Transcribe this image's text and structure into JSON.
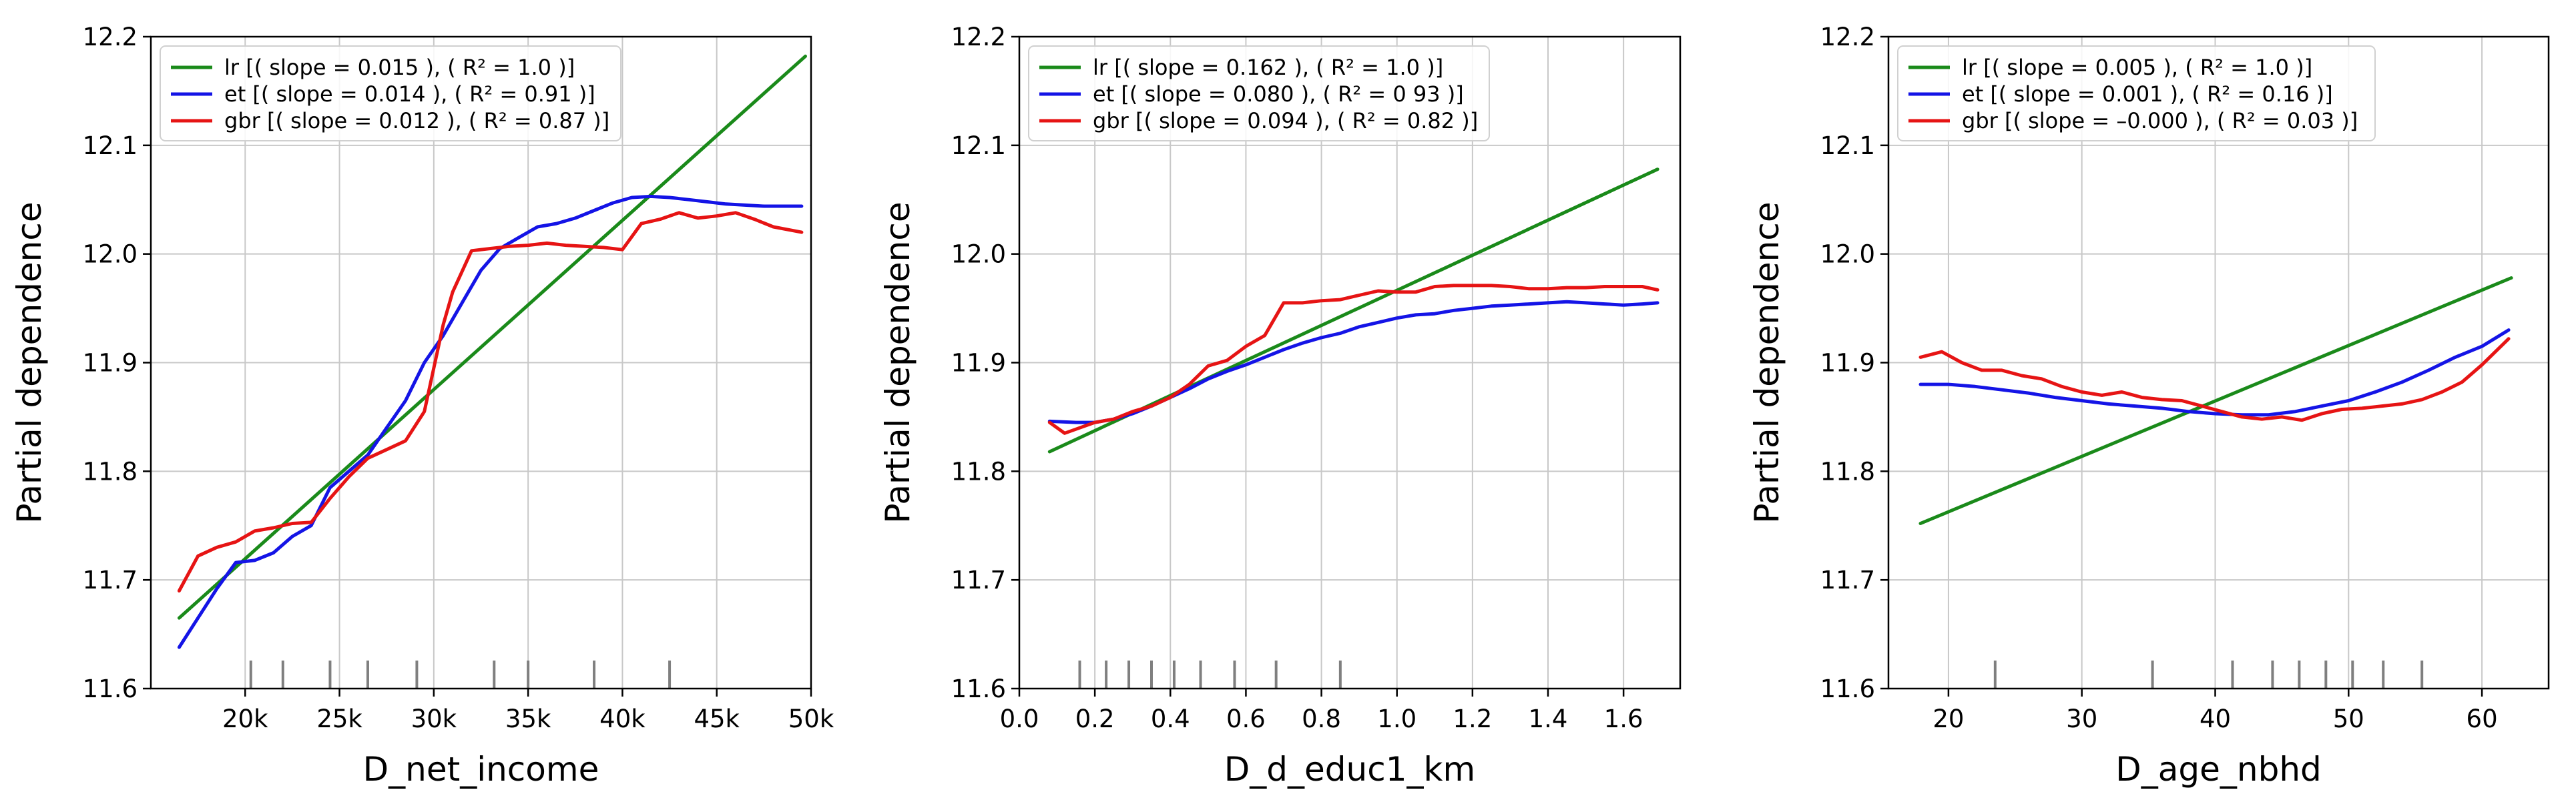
{
  "colors": {
    "lr": "#1a8a1a",
    "et": "#1414e6",
    "gbr": "#e61414"
  },
  "chart_data": [
    {
      "type": "line",
      "xlabel": "D_net_income",
      "ylabel": "Partial dependence",
      "xlim": [
        15000,
        50000
      ],
      "ylim": [
        11.6,
        12.2
      ],
      "x_ticks": [
        20000,
        25000,
        30000,
        35000,
        40000,
        45000,
        50000
      ],
      "x_tick_labels": [
        "20k",
        "25k",
        "30k",
        "35k",
        "40k",
        "45k",
        "50k"
      ],
      "y_ticks": [
        11.6,
        11.7,
        11.8,
        11.9,
        12.0,
        12.1,
        12.2
      ],
      "y_tick_labels": [
        "11.6",
        "11.7",
        "11.8",
        "11.9",
        "12.0",
        "12.1",
        "12.2"
      ],
      "grid": true,
      "legend_position": "top-left",
      "rug": [
        20300,
        22000,
        24500,
        26500,
        29100,
        33200,
        35000,
        38500,
        42500
      ],
      "series": [
        {
          "name": "lr",
          "legend": "lr  [( slope = 0.015 ), ( R² = 1.0 )]",
          "x": [
            16500,
            49700
          ],
          "y": [
            11.665,
            12.182
          ]
        },
        {
          "name": "et",
          "legend": "et  [( slope = 0.014 ), ( R² = 0.91 )]",
          "x": [
            16500,
            17500,
            18500,
            19500,
            20500,
            21500,
            22500,
            23500,
            24500,
            25500,
            26500,
            27500,
            28500,
            29500,
            30500,
            31500,
            32500,
            33500,
            34500,
            35500,
            36500,
            37500,
            38500,
            39500,
            40500,
            41500,
            42500,
            43500,
            44500,
            45500,
            46500,
            47500,
            48500,
            49500
          ],
          "y": [
            11.638,
            11.665,
            11.692,
            11.716,
            11.718,
            11.725,
            11.74,
            11.75,
            11.785,
            11.8,
            11.815,
            11.84,
            11.865,
            11.9,
            11.925,
            11.955,
            11.985,
            12.005,
            12.015,
            12.025,
            12.028,
            12.033,
            12.04,
            12.047,
            12.052,
            12.053,
            12.052,
            12.05,
            12.048,
            12.046,
            12.045,
            12.044,
            12.044,
            12.044
          ]
        },
        {
          "name": "gbr",
          "legend": "gbr  [( slope = 0.012 ), ( R² = 0.87 )]",
          "x": [
            16500,
            17500,
            18500,
            19500,
            20500,
            21500,
            22500,
            23500,
            24500,
            25500,
            26500,
            27500,
            28500,
            29500,
            30500,
            31000,
            32000,
            33000,
            34000,
            35000,
            36000,
            37000,
            38000,
            39000,
            40000,
            41000,
            42000,
            43000,
            44000,
            45000,
            46000,
            47000,
            48000,
            49500
          ],
          "y": [
            11.69,
            11.722,
            11.73,
            11.735,
            11.745,
            11.748,
            11.752,
            11.753,
            11.775,
            11.795,
            11.812,
            11.82,
            11.828,
            11.855,
            11.935,
            11.965,
            12.003,
            12.005,
            12.007,
            12.008,
            12.01,
            12.008,
            12.007,
            12.006,
            12.004,
            12.028,
            12.032,
            12.038,
            12.033,
            12.035,
            12.038,
            12.032,
            12.025,
            12.02
          ]
        }
      ]
    },
    {
      "type": "line",
      "xlabel": "D_d_educ1_km",
      "ylabel": "Partial dependence",
      "xlim": [
        0.0,
        1.75
      ],
      "ylim": [
        11.6,
        12.2
      ],
      "x_ticks": [
        0.0,
        0.2,
        0.4,
        0.6,
        0.8,
        1.0,
        1.2,
        1.4,
        1.6
      ],
      "x_tick_labels": [
        "0.0",
        "0.2",
        "0.4",
        "0.6",
        "0.8",
        "1.0",
        "1.2",
        "1.4",
        "1.6"
      ],
      "y_ticks": [
        11.6,
        11.7,
        11.8,
        11.9,
        12.0,
        12.1,
        12.2
      ],
      "y_tick_labels": [
        "11.6",
        "11.7",
        "11.8",
        "11.9",
        "12.0",
        "12.1",
        "12.2"
      ],
      "grid": true,
      "legend_position": "top-left",
      "rug": [
        0.16,
        0.23,
        0.29,
        0.35,
        0.41,
        0.48,
        0.57,
        0.68,
        0.85
      ],
      "series": [
        {
          "name": "lr",
          "legend": "lr  [( slope = 0.162 ), ( R² = 1.0 )]",
          "x": [
            0.08,
            1.69
          ],
          "y": [
            11.818,
            12.078
          ]
        },
        {
          "name": "et",
          "legend": "et  [( slope = 0.080 ), ( R² = 0 93 )]",
          "x": [
            0.08,
            0.15,
            0.2,
            0.25,
            0.3,
            0.35,
            0.4,
            0.45,
            0.5,
            0.55,
            0.6,
            0.65,
            0.7,
            0.75,
            0.8,
            0.85,
            0.9,
            0.95,
            1.0,
            1.05,
            1.1,
            1.15,
            1.2,
            1.25,
            1.3,
            1.35,
            1.4,
            1.45,
            1.5,
            1.55,
            1.6,
            1.65,
            1.69
          ],
          "y": [
            11.846,
            11.845,
            11.845,
            11.848,
            11.853,
            11.86,
            11.868,
            11.876,
            11.885,
            11.892,
            11.898,
            11.905,
            11.912,
            11.918,
            11.923,
            11.927,
            11.933,
            11.937,
            11.941,
            11.944,
            11.945,
            11.948,
            11.95,
            11.952,
            11.953,
            11.954,
            11.955,
            11.956,
            11.955,
            11.954,
            11.953,
            11.954,
            11.955
          ]
        },
        {
          "name": "gbr",
          "legend": "gbr  [( slope = 0.094 ), ( R² = 0.82 )]",
          "x": [
            0.08,
            0.12,
            0.16,
            0.2,
            0.25,
            0.3,
            0.35,
            0.4,
            0.45,
            0.5,
            0.55,
            0.6,
            0.65,
            0.7,
            0.75,
            0.8,
            0.85,
            0.9,
            0.95,
            1.0,
            1.05,
            1.1,
            1.15,
            1.2,
            1.25,
            1.3,
            1.35,
            1.4,
            1.45,
            1.5,
            1.55,
            1.6,
            1.65,
            1.69
          ],
          "y": [
            11.845,
            11.835,
            11.84,
            11.845,
            11.848,
            11.855,
            11.86,
            11.868,
            11.88,
            11.897,
            11.902,
            11.915,
            11.925,
            11.955,
            11.955,
            11.957,
            11.958,
            11.962,
            11.966,
            11.965,
            11.965,
            11.97,
            11.971,
            11.971,
            11.971,
            11.97,
            11.968,
            11.968,
            11.969,
            11.969,
            11.97,
            11.97,
            11.97,
            11.967
          ]
        }
      ]
    },
    {
      "type": "line",
      "xlabel": "D_age_nbhd",
      "ylabel": "Partial dependence",
      "xlim": [
        15.5,
        65.0
      ],
      "ylim": [
        11.6,
        12.2
      ],
      "x_ticks": [
        20,
        30,
        40,
        50,
        60
      ],
      "x_tick_labels": [
        "20",
        "30",
        "40",
        "50",
        "60"
      ],
      "y_ticks": [
        11.6,
        11.7,
        11.8,
        11.9,
        12.0,
        12.1,
        12.2
      ],
      "y_tick_labels": [
        "11.6",
        "11.7",
        "11.8",
        "11.9",
        "12.0",
        "12.1",
        "12.2"
      ],
      "grid": true,
      "legend_position": "top-left",
      "rug": [
        23.5,
        35.3,
        41.3,
        44.3,
        46.3,
        48.3,
        50.3,
        52.6,
        55.5
      ],
      "series": [
        {
          "name": "lr",
          "legend": "lr  [( slope = 0.005 ), ( R² = 1.0 )]",
          "x": [
            17.9,
            62.2
          ],
          "y": [
            11.752,
            11.978
          ]
        },
        {
          "name": "et",
          "legend": "et  [( slope = 0.001 ), ( R² = 0.16 )]",
          "x": [
            17.9,
            20,
            22,
            24,
            26,
            28,
            30,
            32,
            34,
            36,
            38,
            40,
            42,
            44,
            46,
            48,
            50,
            52,
            54,
            56,
            58,
            60,
            62
          ],
          "y": [
            11.88,
            11.88,
            11.878,
            11.875,
            11.872,
            11.868,
            11.865,
            11.862,
            11.86,
            11.858,
            11.855,
            11.853,
            11.852,
            11.852,
            11.855,
            11.86,
            11.865,
            11.873,
            11.882,
            11.893,
            11.905,
            11.915,
            11.93
          ]
        },
        {
          "name": "gbr",
          "legend": "gbr  [( slope = –0.000 ), ( R² = 0.03 )]",
          "x": [
            17.9,
            19.5,
            21,
            22.5,
            24,
            25.5,
            27,
            28.5,
            30,
            31.5,
            33,
            34.5,
            36,
            37.5,
            39,
            40.5,
            42,
            43.5,
            45,
            46.5,
            48,
            49.5,
            51,
            52.5,
            54,
            55.5,
            57,
            58.5,
            60,
            62
          ],
          "y": [
            11.905,
            11.91,
            11.9,
            11.893,
            11.893,
            11.888,
            11.885,
            11.878,
            11.873,
            11.87,
            11.873,
            11.868,
            11.866,
            11.865,
            11.86,
            11.855,
            11.85,
            11.848,
            11.85,
            11.847,
            11.853,
            11.857,
            11.858,
            11.86,
            11.862,
            11.866,
            11.873,
            11.882,
            11.898,
            11.922
          ]
        }
      ]
    }
  ]
}
